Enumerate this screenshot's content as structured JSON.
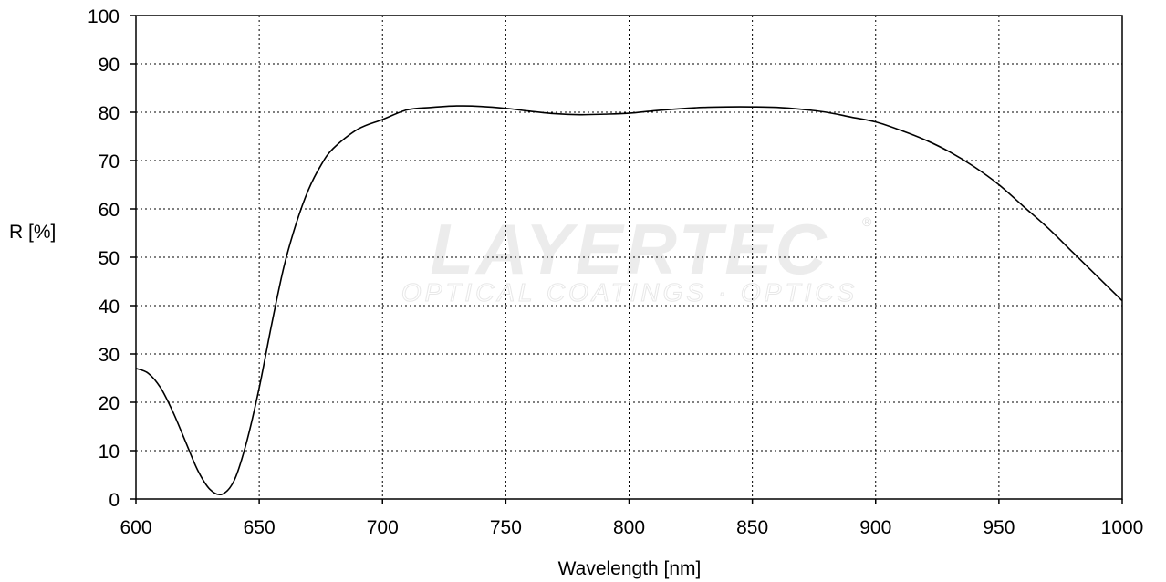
{
  "chart_data": {
    "type": "line",
    "title": "",
    "xlabel": "Wavelength [nm]",
    "ylabel": "R [%]",
    "xlim": [
      600,
      1000
    ],
    "ylim": [
      0,
      100
    ],
    "xticks": [
      600,
      650,
      700,
      750,
      800,
      850,
      900,
      950,
      1000
    ],
    "yticks": [
      0,
      10,
      20,
      30,
      40,
      50,
      60,
      70,
      80,
      90,
      100
    ],
    "grid": true,
    "series": [
      {
        "x": [
          600,
          605,
          610,
          615,
          620,
          625,
          630,
          635,
          640,
          645,
          650,
          655,
          660,
          665,
          670,
          675,
          680,
          690,
          700,
          710,
          720,
          730,
          740,
          750,
          760,
          770,
          780,
          790,
          800,
          810,
          820,
          830,
          840,
          850,
          860,
          870,
          880,
          890,
          900,
          910,
          920,
          930,
          940,
          950,
          960,
          970,
          980,
          990,
          1000
        ],
        "y": [
          27,
          26,
          23,
          18,
          12,
          6,
          2,
          1,
          4,
          12,
          23,
          36,
          48,
          57,
          64,
          69,
          72.5,
          76.5,
          78.5,
          80.5,
          81,
          81.3,
          81.2,
          80.8,
          80.2,
          79.7,
          79.5,
          79.6,
          79.8,
          80.3,
          80.7,
          81,
          81.1,
          81.1,
          81,
          80.6,
          80,
          79,
          78,
          76.3,
          74.3,
          71.8,
          68.7,
          65,
          60.5,
          56,
          51,
          46,
          41
        ]
      }
    ]
  },
  "watermark": {
    "brand": "LAYERTEC",
    "tagline": "OPTICAL COATINGS · OPTICS",
    "registered": "®"
  }
}
